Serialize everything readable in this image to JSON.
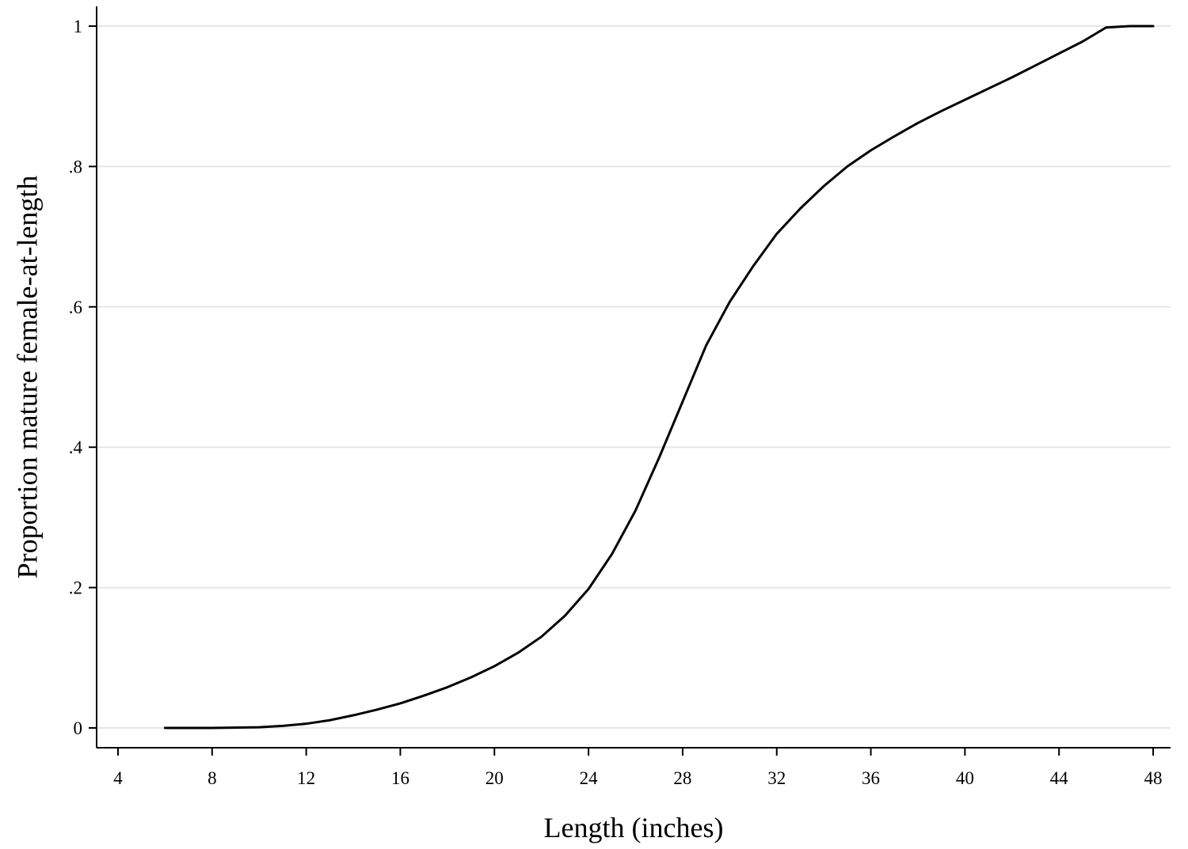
{
  "chart_data": {
    "type": "line",
    "title": "",
    "xlabel": "Length (inches)",
    "ylabel": "Proportion mature female-at-length",
    "xlim": [
      4,
      48
    ],
    "ylim": [
      0,
      1
    ],
    "xticks": [
      4,
      8,
      12,
      16,
      20,
      24,
      28,
      32,
      36,
      40,
      44,
      48
    ],
    "xtick_labels": [
      "4",
      "8",
      "12",
      "16",
      "20",
      "24",
      "28",
      "32",
      "36",
      "40",
      "44",
      "48"
    ],
    "yticks": [
      0,
      0.2,
      0.4,
      0.6,
      0.8,
      1
    ],
    "ytick_labels": [
      "0",
      ".2",
      ".4",
      ".6",
      ".8",
      "1"
    ],
    "grid": "horizontal",
    "legend": "none",
    "line_color": "#000000",
    "grid_color": "#e6e6e6",
    "series": [
      {
        "x": [
          6,
          8,
          10,
          11,
          12,
          13,
          14,
          15,
          16,
          17,
          18,
          19,
          20,
          21,
          22,
          23,
          24,
          25,
          26,
          27,
          28,
          29,
          30,
          31,
          32,
          33,
          34,
          35,
          36,
          37,
          38,
          39,
          40,
          41,
          42,
          43,
          44,
          45,
          46,
          47,
          48
        ],
        "values": [
          0,
          0,
          0.001,
          0.003,
          0.006,
          0.011,
          0.018,
          0.026,
          0.035,
          0.046,
          0.058,
          0.072,
          0.088,
          0.107,
          0.13,
          0.16,
          0.198,
          0.248,
          0.31,
          0.385,
          0.465,
          0.545,
          0.607,
          0.658,
          0.704,
          0.74,
          0.772,
          0.8,
          0.823,
          0.843,
          0.862,
          0.879,
          0.895,
          0.911,
          0.927,
          0.944,
          0.961,
          0.978,
          0.998,
          1,
          1
        ]
      }
    ]
  }
}
